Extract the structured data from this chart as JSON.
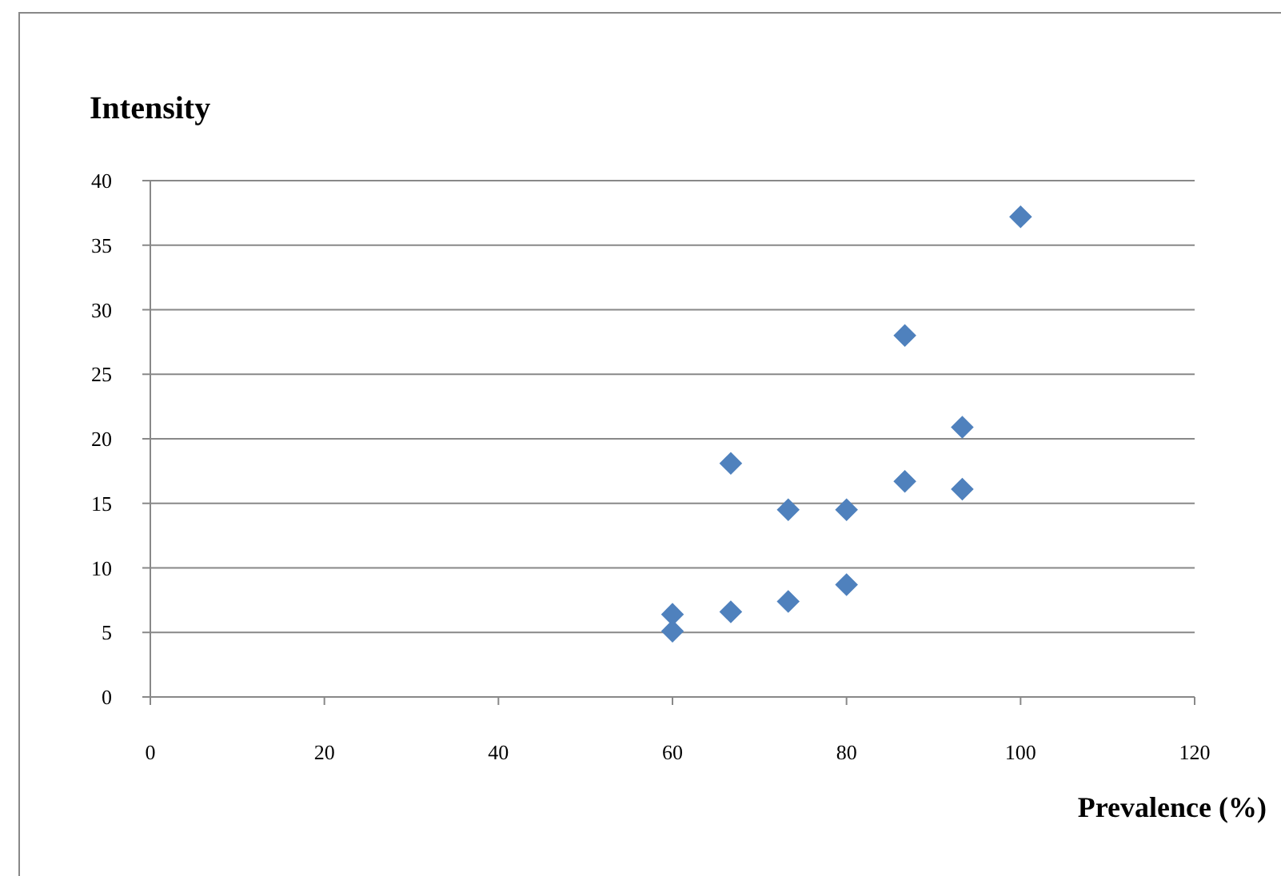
{
  "chart_data": {
    "type": "scatter",
    "ylabel": "Intensity",
    "xlabel": "Prevalence (%)",
    "x": [
      60,
      60,
      66.7,
      66.7,
      73.3,
      73.3,
      80,
      80,
      86.7,
      86.7,
      93.3,
      93.3,
      100
    ],
    "values": [
      6.4,
      5.1,
      18.1,
      6.6,
      14.5,
      7.4,
      14.5,
      8.7,
      28,
      16.7,
      20.9,
      16.1,
      37.2
    ],
    "color": "#4f81bd",
    "marker": "diamond",
    "grid": "y",
    "xlim": [
      0,
      120
    ],
    "xticks": [
      0,
      20,
      40,
      60,
      80,
      100,
      120
    ],
    "ylim": [
      0,
      40
    ],
    "yticks": [
      0,
      5,
      10,
      15,
      20,
      25,
      30,
      35,
      40
    ]
  }
}
